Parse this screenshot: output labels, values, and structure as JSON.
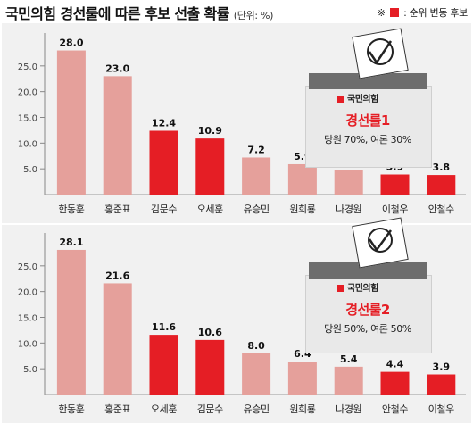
{
  "header": {
    "title": "국민의힘 경선룰에 따른 후보 선출 확률",
    "unit": "(단위: %)",
    "legend_symbol": "※",
    "legend_text": ": 순위 변동 후보"
  },
  "colors": {
    "normal_bar": "#e5a09b",
    "changed_bar": "#e51e25",
    "panel_bg": "#f1f1f1"
  },
  "chart_data": [
    {
      "type": "bar",
      "title": "",
      "ylim": [
        0,
        30
      ],
      "yticks": [
        "5.0",
        "10.0",
        "15.0",
        "20.0",
        "25.0"
      ],
      "categories": [
        "한동훈",
        "홍준표",
        "김문수",
        "오세훈",
        "유승민",
        "원희룡",
        "나경원",
        "이철우",
        "안철수"
      ],
      "values": [
        28.0,
        23.0,
        12.4,
        10.9,
        7.2,
        5.9,
        4.8,
        3.9,
        3.8
      ],
      "value_labels": [
        "28.0",
        "23.0",
        "12.4",
        "10.9",
        "7.2",
        "5.9",
        "4.8",
        "3.9",
        "3.8"
      ],
      "rank_changed": [
        false,
        false,
        true,
        true,
        false,
        false,
        false,
        true,
        true
      ],
      "ballot": {
        "badge": "국민의힘",
        "rule_name": "경선룰1",
        "rule_detail": "당원 70%, 여론 30%"
      }
    },
    {
      "type": "bar",
      "title": "",
      "ylim": [
        0,
        30
      ],
      "yticks": [
        "5.0",
        "10.0",
        "15.0",
        "20.0",
        "25.0"
      ],
      "categories": [
        "한동훈",
        "홍준표",
        "오세훈",
        "김문수",
        "유승민",
        "원희룡",
        "나경원",
        "안철수",
        "이철우"
      ],
      "values": [
        28.1,
        21.6,
        11.6,
        10.6,
        8.0,
        6.4,
        5.4,
        4.4,
        3.9
      ],
      "value_labels": [
        "28.1",
        "21.6",
        "11.6",
        "10.6",
        "8.0",
        "6.4",
        "5.4",
        "4.4",
        "3.9"
      ],
      "rank_changed": [
        false,
        false,
        true,
        true,
        false,
        false,
        false,
        true,
        true
      ],
      "ballot": {
        "badge": "국민의힘",
        "rule_name": "경선룰2",
        "rule_detail": "당원 50%, 여론 50%"
      }
    }
  ]
}
